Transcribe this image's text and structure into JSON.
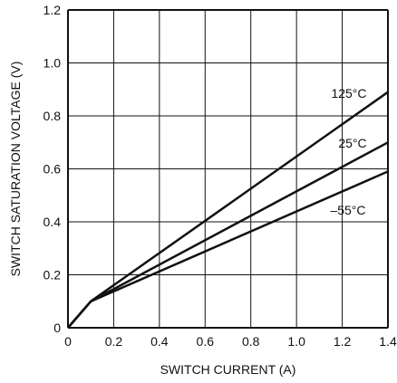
{
  "chart_data": {
    "type": "line",
    "title": "",
    "xlabel": "SWITCH CURRENT (A)",
    "ylabel": "SWITCH SATURATION VOLTAGE (V)",
    "xlim": [
      0,
      1.4
    ],
    "ylim": [
      0,
      1.2
    ],
    "x_ticks": [
      0,
      0.2,
      0.4,
      0.6,
      0.8,
      1.0,
      1.2,
      1.4
    ],
    "x_tick_labels": [
      "0",
      "0.2",
      "0.4",
      "0.6",
      "0.8",
      "1.0",
      "1.2",
      "1.4"
    ],
    "y_ticks": [
      0,
      0.2,
      0.4,
      0.6,
      0.8,
      1.0,
      1.2
    ],
    "y_tick_labels": [
      "0",
      "0.2",
      "0.4",
      "0.6",
      "0.8",
      "1.0",
      "1.2"
    ],
    "grid": true,
    "series": [
      {
        "name": "125°C",
        "x": [
          0,
          0.1,
          1.4
        ],
        "y": [
          0,
          0.1,
          0.89
        ]
      },
      {
        "name": "25°C",
        "x": [
          0,
          0.1,
          1.4
        ],
        "y": [
          0,
          0.1,
          0.7
        ]
      },
      {
        "name": "–55°C",
        "x": [
          0,
          0.1,
          1.4
        ],
        "y": [
          0,
          0.1,
          0.59
        ]
      }
    ],
    "colors": {
      "line": "#111111",
      "grid": "#111111",
      "background": "#ffffff"
    }
  }
}
